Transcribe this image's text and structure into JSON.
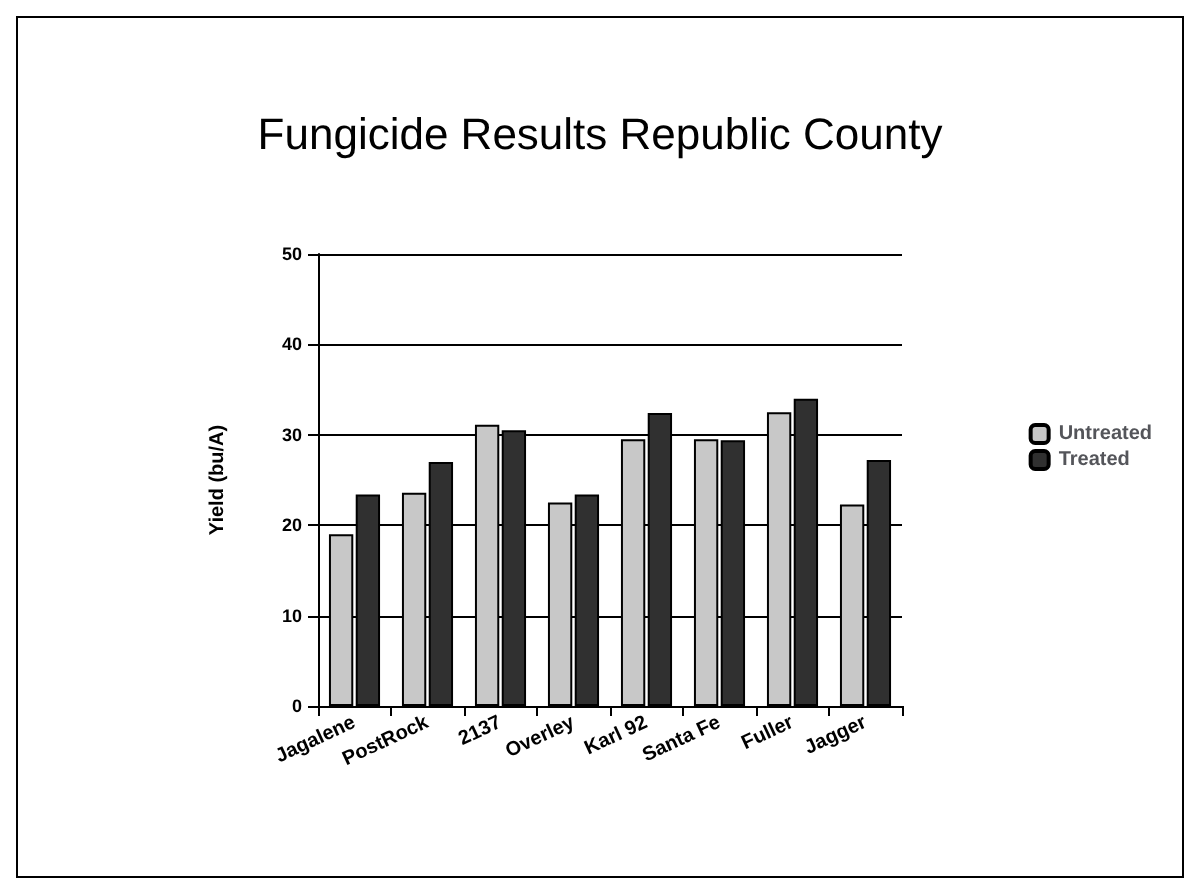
{
  "chart_data": {
    "type": "bar",
    "title": "Fungicide Results Republic County",
    "ylabel": "Yield (bu/A)",
    "categories": [
      "Jagalene",
      "PostRock",
      "2137",
      "Overley",
      "Karl 92",
      "Santa Fe",
      "Fuller",
      "Jagger"
    ],
    "series": [
      {
        "name": "Untreated",
        "color": "#c8c8c8",
        "values": [
          19.0,
          23.6,
          31.1,
          22.5,
          29.5,
          29.5,
          32.5,
          22.3
        ]
      },
      {
        "name": "Treated",
        "color": "#303030",
        "values": [
          23.4,
          27.0,
          30.5,
          23.4,
          32.4,
          29.4,
          34.0,
          27.2
        ]
      }
    ],
    "ylim": [
      0,
      50
    ],
    "yticks": [
      0,
      10,
      20,
      30,
      40,
      50
    ],
    "grid": "y",
    "legend": "right"
  }
}
